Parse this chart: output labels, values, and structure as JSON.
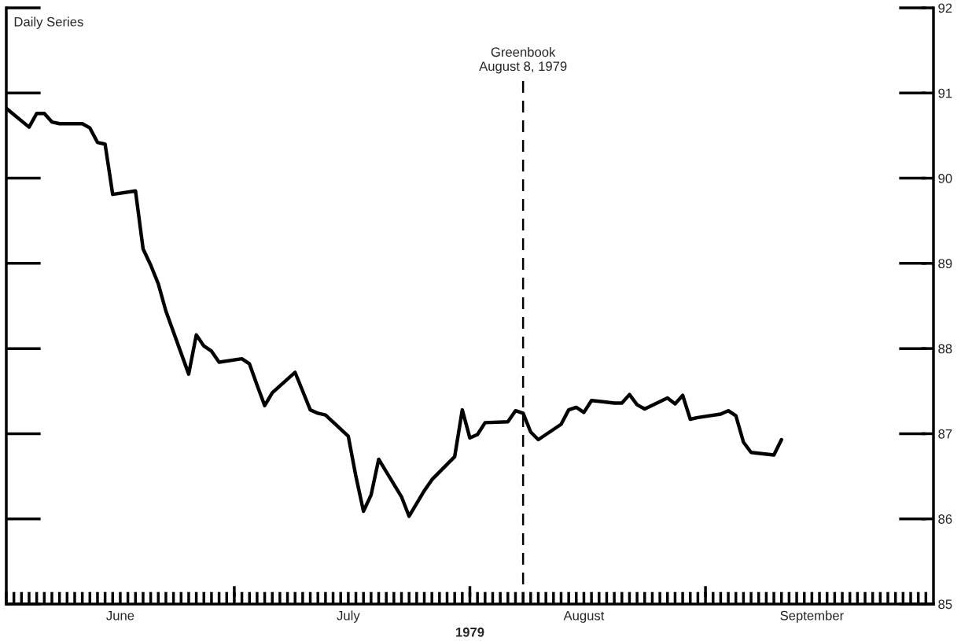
{
  "chart_data": {
    "type": "line",
    "annotations": [
      "Daily Series"
    ],
    "xlabel": "1979",
    "x": [
      "1979-06-01",
      "1979-06-04",
      "1979-06-05",
      "1979-06-06",
      "1979-06-07",
      "1979-06-08",
      "1979-06-11",
      "1979-06-12",
      "1979-06-13",
      "1979-06-14",
      "1979-06-15",
      "1979-06-18",
      "1979-06-19",
      "1979-06-20",
      "1979-06-21",
      "1979-06-22",
      "1979-06-25",
      "1979-06-26",
      "1979-06-27",
      "1979-06-28",
      "1979-06-29",
      "1979-07-02",
      "1979-07-03",
      "1979-07-04",
      "1979-07-05",
      "1979-07-06",
      "1979-07-09",
      "1979-07-10",
      "1979-07-11",
      "1979-07-12",
      "1979-07-13",
      "1979-07-16",
      "1979-07-17",
      "1979-07-18",
      "1979-07-19",
      "1979-07-20",
      "1979-07-23",
      "1979-07-24",
      "1979-07-25",
      "1979-07-26",
      "1979-07-27",
      "1979-07-30",
      "1979-07-31",
      "1979-08-01",
      "1979-08-02",
      "1979-08-03",
      "1979-08-06",
      "1979-08-07",
      "1979-08-08",
      "1979-08-09",
      "1979-08-10",
      "1979-08-13",
      "1979-08-14",
      "1979-08-15",
      "1979-08-16",
      "1979-08-17",
      "1979-08-20",
      "1979-08-21",
      "1979-08-22",
      "1979-08-23",
      "1979-08-24",
      "1979-08-27",
      "1979-08-28",
      "1979-08-29",
      "1979-08-30",
      "1979-08-31",
      "1979-09-03",
      "1979-09-04",
      "1979-09-05",
      "1979-09-06",
      "1979-09-07",
      "1979-09-10",
      "1979-09-11"
    ],
    "series": [
      {
        "color": "#000000",
        "values": [
          90.82,
          90.6,
          90.76,
          90.76,
          90.66,
          90.64,
          90.64,
          90.59,
          90.42,
          90.4,
          89.81,
          89.85,
          89.17,
          88.98,
          88.76,
          88.44,
          87.7,
          88.16,
          88.03,
          87.97,
          87.84,
          87.88,
          87.82,
          87.57,
          87.33,
          87.48,
          87.72,
          87.5,
          87.28,
          87.24,
          87.22,
          86.97,
          86.5,
          86.09,
          86.28,
          86.7,
          86.26,
          86.03,
          86.18,
          86.33,
          86.46,
          86.73,
          87.28,
          86.95,
          86.99,
          87.13,
          87.14,
          87.27,
          87.24,
          87.02,
          86.93,
          87.11,
          87.28,
          87.31,
          87.25,
          87.39,
          87.36,
          87.36,
          87.46,
          87.34,
          87.29,
          87.42,
          87.35,
          87.45,
          87.17,
          87.19,
          87.23,
          87.27,
          87.21,
          86.9,
          86.78,
          86.75,
          86.93
        ]
      }
    ],
    "xlim": [
      "1979-06-01",
      "1979-10-01"
    ],
    "xticks": [
      {
        "value": "1979-06-01",
        "label": null
      },
      {
        "value": "1979-06-02",
        "label": null
      },
      {
        "value": "1979-06-03",
        "label": null
      },
      {
        "value": "1979-06-04",
        "label": null
      },
      {
        "value": "1979-06-05",
        "label": null
      },
      {
        "value": "1979-06-06",
        "label": null
      },
      {
        "value": "1979-06-07",
        "label": null
      },
      {
        "value": "1979-06-08",
        "label": null
      },
      {
        "value": "1979-06-09",
        "label": null
      },
      {
        "value": "1979-06-10",
        "label": null
      },
      {
        "value": "1979-06-11",
        "label": null
      },
      {
        "value": "1979-06-12",
        "label": null
      },
      {
        "value": "1979-06-13",
        "label": null
      },
      {
        "value": "1979-06-14",
        "label": null
      },
      {
        "value": "1979-06-15",
        "label": null
      },
      {
        "value": "1979-06-16",
        "label": "June"
      },
      {
        "value": "1979-06-17",
        "label": null
      },
      {
        "value": "1979-06-18",
        "label": null
      },
      {
        "value": "1979-06-19",
        "label": null
      },
      {
        "value": "1979-06-20",
        "label": null
      },
      {
        "value": "1979-06-21",
        "label": null
      },
      {
        "value": "1979-06-22",
        "label": null
      },
      {
        "value": "1979-06-23",
        "label": null
      },
      {
        "value": "1979-06-24",
        "label": null
      },
      {
        "value": "1979-06-25",
        "label": null
      },
      {
        "value": "1979-06-26",
        "label": null
      },
      {
        "value": "1979-06-27",
        "label": null
      },
      {
        "value": "1979-06-28",
        "label": null
      },
      {
        "value": "1979-06-29",
        "label": null
      },
      {
        "value": "1979-06-30",
        "label": null
      },
      {
        "value": "1979-07-01",
        "label": null
      },
      {
        "value": "1979-07-02",
        "label": null
      },
      {
        "value": "1979-07-03",
        "label": null
      },
      {
        "value": "1979-07-04",
        "label": null
      },
      {
        "value": "1979-07-05",
        "label": null
      },
      {
        "value": "1979-07-06",
        "label": null
      },
      {
        "value": "1979-07-07",
        "label": null
      },
      {
        "value": "1979-07-08",
        "label": null
      },
      {
        "value": "1979-07-09",
        "label": null
      },
      {
        "value": "1979-07-10",
        "label": null
      },
      {
        "value": "1979-07-11",
        "label": null
      },
      {
        "value": "1979-07-12",
        "label": null
      },
      {
        "value": "1979-07-13",
        "label": null
      },
      {
        "value": "1979-07-14",
        "label": null
      },
      {
        "value": "1979-07-15",
        "label": null
      },
      {
        "value": "1979-07-16",
        "label": "July"
      },
      {
        "value": "1979-07-17",
        "label": null
      },
      {
        "value": "1979-07-18",
        "label": null
      },
      {
        "value": "1979-07-19",
        "label": null
      },
      {
        "value": "1979-07-20",
        "label": null
      },
      {
        "value": "1979-07-21",
        "label": null
      },
      {
        "value": "1979-07-22",
        "label": null
      },
      {
        "value": "1979-07-23",
        "label": null
      },
      {
        "value": "1979-07-24",
        "label": null
      },
      {
        "value": "1979-07-25",
        "label": null
      },
      {
        "value": "1979-07-26",
        "label": null
      },
      {
        "value": "1979-07-27",
        "label": null
      },
      {
        "value": "1979-07-28",
        "label": null
      },
      {
        "value": "1979-07-29",
        "label": null
      },
      {
        "value": "1979-07-30",
        "label": null
      },
      {
        "value": "1979-07-31",
        "label": null
      },
      {
        "value": "1979-08-01",
        "label": null
      },
      {
        "value": "1979-08-02",
        "label": null
      },
      {
        "value": "1979-08-03",
        "label": null
      },
      {
        "value": "1979-08-04",
        "label": null
      },
      {
        "value": "1979-08-05",
        "label": null
      },
      {
        "value": "1979-08-06",
        "label": null
      },
      {
        "value": "1979-08-07",
        "label": null
      },
      {
        "value": "1979-08-08",
        "label": null
      },
      {
        "value": "1979-08-09",
        "label": null
      },
      {
        "value": "1979-08-10",
        "label": null
      },
      {
        "value": "1979-08-11",
        "label": null
      },
      {
        "value": "1979-08-12",
        "label": null
      },
      {
        "value": "1979-08-13",
        "label": null
      },
      {
        "value": "1979-08-14",
        "label": null
      },
      {
        "value": "1979-08-15",
        "label": null
      },
      {
        "value": "1979-08-16",
        "label": "August"
      },
      {
        "value": "1979-08-17",
        "label": null
      },
      {
        "value": "1979-08-18",
        "label": null
      },
      {
        "value": "1979-08-19",
        "label": null
      },
      {
        "value": "1979-08-20",
        "label": null
      },
      {
        "value": "1979-08-21",
        "label": null
      },
      {
        "value": "1979-08-22",
        "label": null
      },
      {
        "value": "1979-08-23",
        "label": null
      },
      {
        "value": "1979-08-24",
        "label": null
      },
      {
        "value": "1979-08-25",
        "label": null
      },
      {
        "value": "1979-08-26",
        "label": null
      },
      {
        "value": "1979-08-27",
        "label": null
      },
      {
        "value": "1979-08-28",
        "label": null
      },
      {
        "value": "1979-08-29",
        "label": null
      },
      {
        "value": "1979-08-30",
        "label": null
      },
      {
        "value": "1979-08-31",
        "label": null
      },
      {
        "value": "1979-09-01",
        "label": null
      },
      {
        "value": "1979-09-02",
        "label": null
      },
      {
        "value": "1979-09-03",
        "label": null
      },
      {
        "value": "1979-09-04",
        "label": null
      },
      {
        "value": "1979-09-05",
        "label": null
      },
      {
        "value": "1979-09-06",
        "label": null
      },
      {
        "value": "1979-09-07",
        "label": null
      },
      {
        "value": "1979-09-08",
        "label": null
      },
      {
        "value": "1979-09-09",
        "label": null
      },
      {
        "value": "1979-09-10",
        "label": null
      },
      {
        "value": "1979-09-11",
        "label": null
      },
      {
        "value": "1979-09-12",
        "label": null
      },
      {
        "value": "1979-09-13",
        "label": null
      },
      {
        "value": "1979-09-14",
        "label": null
      },
      {
        "value": "1979-09-15",
        "label": "September"
      },
      {
        "value": "1979-09-16",
        "label": null
      },
      {
        "value": "1979-09-17",
        "label": null
      },
      {
        "value": "1979-09-18",
        "label": null
      },
      {
        "value": "1979-09-19",
        "label": null
      },
      {
        "value": "1979-09-20",
        "label": null
      },
      {
        "value": "1979-09-21",
        "label": null
      },
      {
        "value": "1979-09-22",
        "label": null
      },
      {
        "value": "1979-09-23",
        "label": null
      },
      {
        "value": "1979-09-24",
        "label": null
      },
      {
        "value": "1979-09-25",
        "label": null
      },
      {
        "value": "1979-09-26",
        "label": null
      },
      {
        "value": "1979-09-27",
        "label": null
      },
      {
        "value": "1979-09-28",
        "label": null
      },
      {
        "value": "1979-09-29",
        "label": null
      },
      {
        "value": "1979-09-30",
        "label": null
      }
    ],
    "ylim": [
      85,
      92
    ],
    "yticks": [
      85,
      86,
      87,
      88,
      89,
      90,
      91,
      92
    ],
    "ref_lines": [
      {
        "axis": "x",
        "value": "1979-08-08",
        "label": "Greenbook\nAugust 8, 1979",
        "line_style": "dashed",
        "color": "#000000"
      }
    ],
    "grid": false,
    "legend": false,
    "marker": "none",
    "line_style": "solid"
  }
}
